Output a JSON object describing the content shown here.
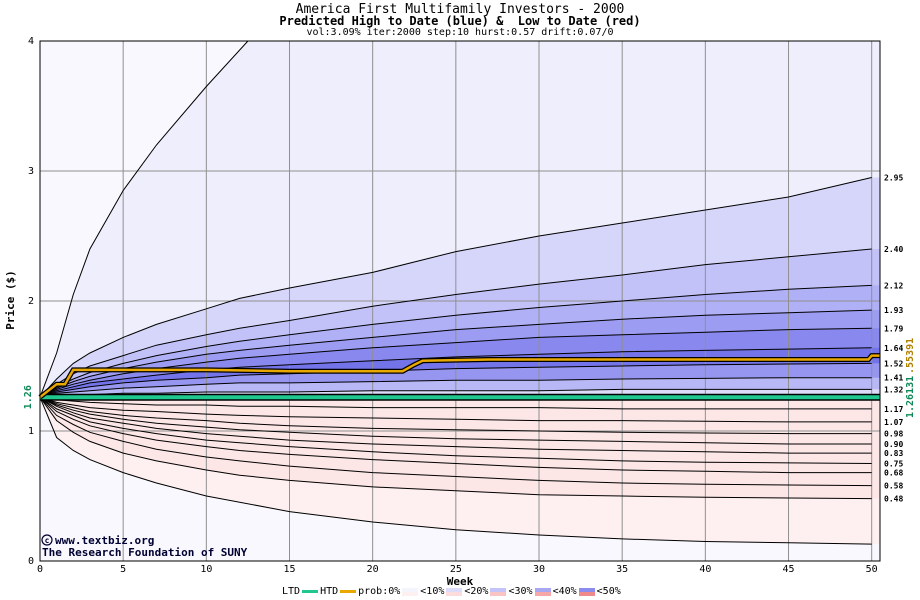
{
  "chart_data": {
    "type": "area",
    "title": "America First Multifamily Investors - 2000",
    "subtitle": "Predicted High to Date (blue) &  Low to Date (red)",
    "params": "vol:3.09% iter:2000 step:10 hurst:0.57 drift:0.07/0",
    "xlabel": "Week",
    "ylabel": "Price ($)",
    "xlim": [
      0,
      50.5
    ],
    "ylim": [
      0,
      4
    ],
    "xticks": [
      0,
      5,
      10,
      15,
      20,
      25,
      30,
      35,
      40,
      45,
      50
    ],
    "yticks": [
      0,
      1,
      2,
      3,
      4
    ],
    "start_price": 1.26,
    "start_label": "1.26",
    "right_labels": [
      "1.26131",
      ".55391"
    ],
    "watermark": [
      "www.textbiz.org",
      "The Research Foundation of SUNY"
    ],
    "x": [
      0,
      1,
      2,
      3,
      5,
      7,
      10,
      12,
      15,
      20,
      25,
      30,
      35,
      40,
      45,
      50
    ],
    "upper_bands": [
      {
        "label": "2.95",
        "color": "#d6d6fa",
        "values": [
          1.26,
          1.4,
          1.52,
          1.6,
          1.72,
          1.82,
          1.94,
          2.02,
          2.1,
          2.22,
          2.38,
          2.5,
          2.6,
          2.7,
          2.8,
          2.95
        ]
      },
      {
        "label": "2.40",
        "color": "#c2c2f8",
        "values": [
          1.26,
          1.36,
          1.44,
          1.5,
          1.58,
          1.66,
          1.74,
          1.79,
          1.85,
          1.96,
          2.05,
          2.13,
          2.2,
          2.28,
          2.34,
          2.4
        ]
      },
      {
        "label": "2.12",
        "color": "#b0b0f6",
        "values": [
          1.26,
          1.34,
          1.4,
          1.45,
          1.52,
          1.58,
          1.65,
          1.69,
          1.74,
          1.82,
          1.89,
          1.95,
          2.0,
          2.05,
          2.09,
          2.12
        ]
      },
      {
        "label": "1.93",
        "color": "#9c9cf2",
        "values": [
          1.26,
          1.33,
          1.38,
          1.42,
          1.48,
          1.53,
          1.59,
          1.62,
          1.66,
          1.72,
          1.78,
          1.82,
          1.86,
          1.89,
          1.91,
          1.93
        ]
      },
      {
        "label": "1.79",
        "color": "#8888ee",
        "values": [
          1.26,
          1.32,
          1.36,
          1.39,
          1.44,
          1.48,
          1.53,
          1.56,
          1.59,
          1.64,
          1.68,
          1.72,
          1.74,
          1.76,
          1.78,
          1.79
        ]
      },
      {
        "label": "1.64",
        "color": "#7474ea",
        "values": [
          1.26,
          1.31,
          1.34,
          1.37,
          1.4,
          1.43,
          1.47,
          1.49,
          1.51,
          1.54,
          1.57,
          1.59,
          1.61,
          1.62,
          1.63,
          1.64
        ]
      },
      {
        "label": "1.52",
        "color": "#9696f0",
        "values": [
          1.26,
          1.3,
          1.32,
          1.34,
          1.37,
          1.39,
          1.41,
          1.43,
          1.44,
          1.46,
          1.48,
          1.49,
          1.5,
          1.51,
          1.515,
          1.52
        ]
      },
      {
        "label": "1.41",
        "color": "#b8b8f6",
        "values": [
          1.26,
          1.29,
          1.3,
          1.31,
          1.33,
          1.34,
          1.36,
          1.37,
          1.37,
          1.38,
          1.39,
          1.39,
          1.4,
          1.405,
          1.41,
          1.41
        ]
      },
      {
        "label": "1.32",
        "color": "#dcdcfa",
        "values": [
          1.26,
          1.27,
          1.28,
          1.28,
          1.29,
          1.29,
          1.3,
          1.3,
          1.3,
          1.31,
          1.31,
          1.31,
          1.32,
          1.32,
          1.32,
          1.32
        ]
      }
    ],
    "lower_bands": [
      {
        "label": "1.17",
        "color": "#fce4e4",
        "values": [
          1.26,
          1.24,
          1.23,
          1.22,
          1.21,
          1.2,
          1.2,
          1.19,
          1.19,
          1.18,
          1.18,
          1.18,
          1.17,
          1.17,
          1.17,
          1.17
        ]
      },
      {
        "label": "1.07",
        "color": "#fad0d0",
        "values": [
          1.26,
          1.22,
          1.2,
          1.18,
          1.16,
          1.15,
          1.13,
          1.12,
          1.11,
          1.1,
          1.09,
          1.08,
          1.08,
          1.075,
          1.07,
          1.07
        ]
      },
      {
        "label": "0.98",
        "color": "#f8b8b8",
        "values": [
          1.26,
          1.21,
          1.18,
          1.15,
          1.12,
          1.1,
          1.08,
          1.06,
          1.04,
          1.02,
          1.01,
          1.0,
          0.99,
          0.985,
          0.98,
          0.98
        ]
      },
      {
        "label": "0.90",
        "color": "#f6a4a4",
        "values": [
          1.26,
          1.2,
          1.16,
          1.13,
          1.09,
          1.06,
          1.03,
          1.01,
          0.99,
          0.96,
          0.94,
          0.93,
          0.92,
          0.91,
          0.9,
          0.9
        ]
      },
      {
        "label": "0.83",
        "color": "#f49090",
        "values": [
          1.26,
          1.19,
          1.14,
          1.1,
          1.06,
          1.02,
          0.98,
          0.96,
          0.93,
          0.9,
          0.88,
          0.86,
          0.85,
          0.84,
          0.83,
          0.83
        ]
      },
      {
        "label": "0.75",
        "color": "#f28080",
        "values": [
          1.26,
          1.17,
          1.12,
          1.07,
          1.02,
          0.98,
          0.93,
          0.91,
          0.88,
          0.84,
          0.81,
          0.79,
          0.77,
          0.76,
          0.755,
          0.75
        ]
      },
      {
        "label": "0.68",
        "color": "#f6a4a4",
        "values": [
          1.26,
          1.15,
          1.09,
          1.04,
          0.98,
          0.93,
          0.88,
          0.85,
          0.82,
          0.78,
          0.75,
          0.72,
          0.7,
          0.69,
          0.68,
          0.68
        ]
      },
      {
        "label": "0.58",
        "color": "#fbcaca",
        "values": [
          1.26,
          1.12,
          1.05,
          0.99,
          0.92,
          0.86,
          0.8,
          0.77,
          0.73,
          0.68,
          0.65,
          0.62,
          0.6,
          0.59,
          0.585,
          0.58
        ]
      },
      {
        "label": "0.48",
        "color": "#fce6e6",
        "values": [
          1.26,
          1.08,
          0.99,
          0.92,
          0.83,
          0.77,
          0.7,
          0.66,
          0.62,
          0.57,
          0.54,
          0.51,
          0.5,
          0.49,
          0.485,
          0.48
        ]
      }
    ],
    "outer_upper": {
      "x": [
        0,
        1,
        2,
        3,
        5,
        7,
        10,
        12.5,
        50.5
      ],
      "values": [
        1.26,
        1.6,
        2.05,
        2.4,
        2.85,
        3.2,
        3.65,
        4.0,
        4.0
      ]
    },
    "outer_lower": {
      "x": [
        0,
        1,
        2,
        3,
        5,
        7,
        10,
        15,
        20,
        25,
        30,
        35,
        40,
        45,
        50
      ],
      "values": [
        1.26,
        0.95,
        0.85,
        0.78,
        0.68,
        0.6,
        0.5,
        0.38,
        0.3,
        0.24,
        0.2,
        0.17,
        0.15,
        0.14,
        0.13
      ]
    },
    "htd_series": {
      "name": "HTD",
      "color": "#e8a800",
      "x": [
        0,
        1,
        1.5,
        2,
        3,
        10,
        15,
        21.8,
        22.5,
        23,
        27,
        35,
        40,
        49.8,
        50,
        50.5
      ],
      "values": [
        1.26,
        1.36,
        1.36,
        1.47,
        1.47,
        1.47,
        1.46,
        1.46,
        1.51,
        1.54,
        1.55,
        1.55,
        1.55,
        1.55,
        1.58,
        1.58
      ]
    },
    "ltd_series": {
      "name": "LTD",
      "color": "#20c890",
      "x": [
        0,
        50.5
      ],
      "values": [
        1.26,
        1.26
      ]
    },
    "legend": {
      "ltd": "LTD",
      "htd": "HTD",
      "prob": "prob:0%",
      "items": [
        "<10%",
        "<20%",
        "<30%",
        "<40%",
        "<50%"
      ],
      "item_colors": [
        [
          "#f4f4fd",
          "#fdf0f0"
        ],
        [
          "#dcdcfa",
          "#fcdcdc"
        ],
        [
          "#c4c4f8",
          "#f9c4c4"
        ],
        [
          "#a8a8f2",
          "#f6a8a8"
        ],
        [
          "#8c8cee",
          "#f08a8a"
        ]
      ]
    }
  }
}
